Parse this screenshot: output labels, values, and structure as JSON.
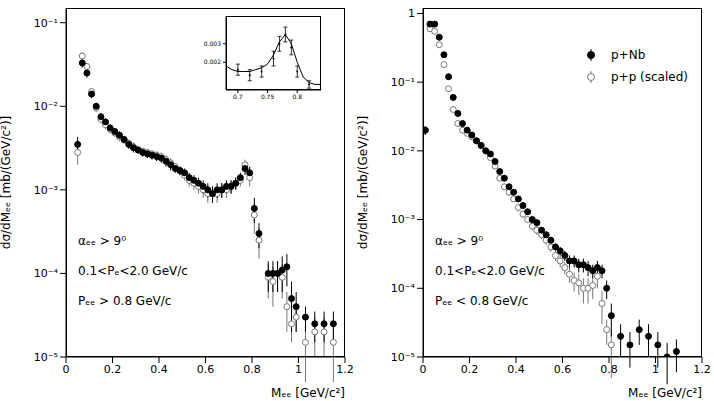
{
  "chart_data": [
    {
      "type": "scatter",
      "x_label": "Mₑₑ [GeV/c²]",
      "y_label": "dσ/dMₑₑ [mb/(GeV/c²)]",
      "log": "y",
      "grid": false,
      "xlim": [
        0,
        1.2
      ],
      "xticks": [
        0,
        0.2,
        0.4,
        0.6,
        0.8,
        1,
        1.2
      ],
      "ylim": [
        1e-05,
        0.15
      ],
      "yticks": [
        {
          "value": 1e-05,
          "label": "10⁻⁵"
        },
        {
          "value": 0.0001,
          "label": "10⁻⁴"
        },
        {
          "value": 0.001,
          "label": "10⁻³"
        },
        {
          "value": 0.01,
          "label": "10⁻²"
        },
        {
          "value": 0.1,
          "label": "10⁻¹"
        }
      ],
      "annotations": [
        "αₑₑ > 9⁰",
        "0.1<Pₑ<2.0 GeV/c",
        "Pₑₑ > 0.8 GeV/c"
      ],
      "series": [
        {
          "name": "p+Nb",
          "color": "#000000",
          "marker": "filled_circle",
          "x": [
            0.05,
            0.07,
            0.09,
            0.11,
            0.13,
            0.15,
            0.17,
            0.19,
            0.21,
            0.23,
            0.25,
            0.27,
            0.29,
            0.31,
            0.33,
            0.35,
            0.37,
            0.39,
            0.41,
            0.43,
            0.45,
            0.47,
            0.49,
            0.51,
            0.53,
            0.55,
            0.57,
            0.59,
            0.61,
            0.63,
            0.65,
            0.67,
            0.69,
            0.71,
            0.73,
            0.75,
            0.77,
            0.79,
            0.81,
            0.83,
            0.87,
            0.89,
            0.91,
            0.93,
            0.95,
            0.97,
            0.99,
            1.03,
            1.07,
            1.11,
            1.15
          ],
          "values": [
            0.0035,
            0.033,
            0.025,
            0.014,
            0.01,
            0.0075,
            0.0065,
            0.0055,
            0.005,
            0.0045,
            0.004,
            0.0035,
            0.0032,
            0.003,
            0.0028,
            0.0027,
            0.0026,
            0.0025,
            0.0024,
            0.0022,
            0.002,
            0.0018,
            0.0017,
            0.0016,
            0.0014,
            0.0013,
            0.0012,
            0.0011,
            0.001,
            0.0009,
            0.001,
            0.001,
            0.0011,
            0.0011,
            0.0012,
            0.0014,
            0.0018,
            0.0016,
            0.0006,
            0.0003,
            0.0001,
            0.0001,
            0.0001,
            0.00011,
            0.00012,
            5e-05,
            4e-05,
            3e-05,
            2.5e-05,
            2.5e-05,
            2.5e-05
          ],
          "errors": [
            0.0008,
            0.004,
            0.003,
            0.0015,
            0.001,
            0.0008,
            0.0007,
            0.0006,
            0.0005,
            0.0005,
            0.0004,
            0.0004,
            0.0004,
            0.0003,
            0.0003,
            0.0003,
            0.0003,
            0.0003,
            0.0003,
            0.0003,
            0.0003,
            0.0002,
            0.0002,
            0.0002,
            0.0002,
            0.0002,
            0.0002,
            0.0002,
            0.0002,
            0.0002,
            0.0002,
            0.0002,
            0.0002,
            0.0002,
            0.0002,
            0.0002,
            0.0003,
            0.0003,
            0.0002,
            0.0001,
            4e-05,
            4e-05,
            4e-05,
            5e-05,
            5e-05,
            3e-05,
            2e-05,
            1e-05,
            1e-05,
            1e-05,
            1e-05
          ]
        },
        {
          "name": "p+p (scaled)",
          "color": "#777777",
          "marker": "open_circle",
          "x": [
            0.05,
            0.07,
            0.09,
            0.11,
            0.13,
            0.15,
            0.17,
            0.19,
            0.21,
            0.23,
            0.25,
            0.27,
            0.29,
            0.31,
            0.33,
            0.35,
            0.37,
            0.39,
            0.41,
            0.43,
            0.45,
            0.47,
            0.49,
            0.51,
            0.53,
            0.55,
            0.57,
            0.59,
            0.61,
            0.63,
            0.65,
            0.67,
            0.69,
            0.71,
            0.73,
            0.75,
            0.77,
            0.79,
            0.81,
            0.83,
            0.87,
            0.89,
            0.91,
            0.93,
            0.95,
            0.97,
            0.99,
            1.03,
            1.07,
            1.11,
            1.15
          ],
          "values": [
            0.0028,
            0.04,
            0.03,
            0.015,
            0.0095,
            0.007,
            0.006,
            0.0053,
            0.0048,
            0.0043,
            0.004,
            0.0036,
            0.0033,
            0.003,
            0.0029,
            0.0028,
            0.0027,
            0.0026,
            0.0025,
            0.0023,
            0.0021,
            0.0019,
            0.0017,
            0.0015,
            0.0013,
            0.0012,
            0.0011,
            0.001,
            0.0009,
            0.0009,
            0.0009,
            0.001,
            0.001,
            0.0011,
            0.0012,
            0.0013,
            0.002,
            0.0014,
            0.0005,
            0.00025,
            9e-05,
            8e-05,
            0.0001,
            9e-05,
            4e-05,
            2.5e-05,
            3e-05,
            1.5e-05,
            2e-05,
            2e-05,
            1.5e-05
          ],
          "errors": [
            0.0008,
            0.004,
            0.003,
            0.0015,
            0.001,
            0.0008,
            0.0007,
            0.0006,
            0.0005,
            0.0005,
            0.0004,
            0.0004,
            0.0004,
            0.0003,
            0.0003,
            0.0003,
            0.0003,
            0.0003,
            0.0003,
            0.0003,
            0.0003,
            0.0002,
            0.0002,
            0.0002,
            0.0002,
            0.0002,
            0.0002,
            0.0002,
            0.0002,
            0.0002,
            0.0002,
            0.0002,
            0.0002,
            0.0002,
            0.0002,
            0.0002,
            0.0003,
            0.0003,
            0.0002,
            0.0001,
            4e-05,
            4e-05,
            4e-05,
            4e-05,
            2e-05,
            1e-05,
            1e-05,
            1e-05,
            1e-05,
            1e-05,
            1e-05
          ]
        }
      ],
      "inset": {
        "type": "scatter",
        "xlim": [
          0.68,
          0.84
        ],
        "xticks": [
          0.7,
          0.75,
          0.8
        ],
        "ylim": [
          0.0005,
          0.0045
        ],
        "yticks": [
          0.002,
          0.003
        ],
        "points": {
          "x": [
            0.7,
            0.72,
            0.74,
            0.76,
            0.77,
            0.78,
            0.79,
            0.8,
            0.82
          ],
          "values": [
            0.0016,
            0.0013,
            0.0015,
            0.0022,
            0.003,
            0.0035,
            0.0028,
            0.0015,
            0.0008
          ],
          "errors": [
            0.0003,
            0.0003,
            0.0003,
            0.0004,
            0.0004,
            0.0004,
            0.0004,
            0.0003,
            0.0002
          ]
        },
        "fit": {
          "x": [
            0.68,
            0.69,
            0.7,
            0.71,
            0.72,
            0.73,
            0.74,
            0.75,
            0.76,
            0.77,
            0.78,
            0.79,
            0.8,
            0.81,
            0.82,
            0.83,
            0.84
          ],
          "values": [
            0.0018,
            0.0016,
            0.0015,
            0.0015,
            0.0015,
            0.0016,
            0.0017,
            0.0019,
            0.0024,
            0.0031,
            0.0035,
            0.003,
            0.002,
            0.0012,
            0.0009,
            0.0008,
            0.0008
          ]
        }
      }
    },
    {
      "type": "scatter",
      "x_label": "Mₑₑ [GeV/c²]",
      "y_label": "dσ/dMₑₑ [mb/(GeV/c²)]",
      "log": "y",
      "grid": false,
      "legend": "upper right",
      "xlim": [
        0,
        1.2
      ],
      "xticks": [
        0,
        0.2,
        0.4,
        0.6,
        0.8,
        1,
        1.2
      ],
      "ylim": [
        1e-05,
        1.2
      ],
      "yticks": [
        {
          "value": 1e-05,
          "label": "10⁻⁵"
        },
        {
          "value": 0.0001,
          "label": "10⁻⁴"
        },
        {
          "value": 0.001,
          "label": "10⁻³"
        },
        {
          "value": 0.01,
          "label": "10⁻²"
        },
        {
          "value": 0.1,
          "label": "10⁻¹"
        },
        1
      ],
      "annotations": [
        "αₑₑ > 9⁰",
        "0.1<Pₑ<2.0 GeV/c",
        "Pₑₑ < 0.8 GeV/c"
      ],
      "series": [
        {
          "name": "p+Nb",
          "color": "#000000",
          "marker": "filled_circle",
          "x": [
            0.01,
            0.03,
            0.05,
            0.07,
            0.09,
            0.11,
            0.13,
            0.15,
            0.17,
            0.19,
            0.21,
            0.23,
            0.25,
            0.27,
            0.29,
            0.31,
            0.33,
            0.35,
            0.37,
            0.39,
            0.41,
            0.43,
            0.45,
            0.47,
            0.49,
            0.51,
            0.53,
            0.55,
            0.57,
            0.59,
            0.61,
            0.63,
            0.65,
            0.67,
            0.69,
            0.71,
            0.73,
            0.75,
            0.77,
            0.79,
            0.81,
            0.85,
            0.89,
            0.93,
            0.97,
            1.01,
            1.05,
            1.09
          ],
          "values": [
            0.02,
            0.7,
            0.7,
            0.45,
            0.25,
            0.12,
            0.06,
            0.035,
            0.025,
            0.02,
            0.017,
            0.014,
            0.012,
            0.01,
            0.009,
            0.007,
            0.005,
            0.004,
            0.003,
            0.0025,
            0.002,
            0.0016,
            0.0013,
            0.001,
            0.0009,
            0.0007,
            0.0006,
            0.0005,
            0.0004,
            0.00035,
            0.0003,
            0.00025,
            0.00025,
            0.00022,
            0.00022,
            0.0002,
            0.00018,
            0.0002,
            0.00018,
            0.0001,
            4e-05,
            2e-05,
            1.5e-05,
            2.5e-05,
            2e-05,
            1.5e-05,
            1e-05,
            1.2e-05
          ],
          "errors": [
            0.003,
            0.05,
            0.05,
            0.03,
            0.02,
            0.01,
            0.005,
            0.003,
            0.002,
            0.002,
            0.0015,
            0.0012,
            0.001,
            0.0008,
            0.0007,
            0.0006,
            0.0004,
            0.0003,
            0.0003,
            0.0002,
            0.0002,
            0.00015,
            0.00012,
            0.0001,
            0.0001,
            8e-05,
            7e-05,
            6e-05,
            5e-05,
            5e-05,
            5e-05,
            5e-05,
            5e-05,
            5e-05,
            5e-05,
            5e-05,
            4e-05,
            5e-05,
            4e-05,
            3e-05,
            2e-05,
            1e-05,
            8e-06,
            1e-05,
            1e-05,
            8e-06,
            6e-06,
            6e-06
          ]
        },
        {
          "name": "p+p (scaled)",
          "color": "#777777",
          "marker": "open_circle",
          "x": [
            0.01,
            0.03,
            0.05,
            0.07,
            0.09,
            0.11,
            0.13,
            0.15,
            0.17,
            0.19,
            0.21,
            0.23,
            0.25,
            0.27,
            0.29,
            0.31,
            0.33,
            0.35,
            0.37,
            0.39,
            0.41,
            0.43,
            0.45,
            0.47,
            0.49,
            0.51,
            0.53,
            0.55,
            0.57,
            0.59,
            0.61,
            0.63,
            0.65,
            0.67,
            0.69,
            0.71,
            0.73,
            0.75,
            0.77,
            0.79,
            0.81
          ],
          "values": [
            0.02,
            0.6,
            0.55,
            0.35,
            0.18,
            0.08,
            0.04,
            0.025,
            0.02,
            0.018,
            0.016,
            0.014,
            0.012,
            0.01,
            0.008,
            0.006,
            0.004,
            0.003,
            0.0025,
            0.002,
            0.0015,
            0.0012,
            0.001,
            0.0008,
            0.0007,
            0.0006,
            0.0005,
            0.0004,
            0.0003,
            0.00025,
            0.0002,
            0.00016,
            0.00013,
            0.00012,
            0.0001,
            0.0001,
            0.00011,
            0.00015,
            6e-05,
            2.5e-05,
            1.5e-05
          ],
          "errors": [
            0.003,
            0.04,
            0.04,
            0.03,
            0.015,
            0.008,
            0.004,
            0.002,
            0.002,
            0.0015,
            0.0015,
            0.0012,
            0.001,
            0.0008,
            0.0007,
            0.0005,
            0.0004,
            0.0003,
            0.0003,
            0.0002,
            0.0002,
            0.00015,
            0.0001,
            0.0001,
            0.0001,
            8e-05,
            7e-05,
            6e-05,
            5e-05,
            5e-05,
            4e-05,
            4e-05,
            4e-05,
            4e-05,
            4e-05,
            4e-05,
            4e-05,
            5e-05,
            3e-05,
            1e-05,
            1e-05
          ]
        }
      ]
    }
  ]
}
